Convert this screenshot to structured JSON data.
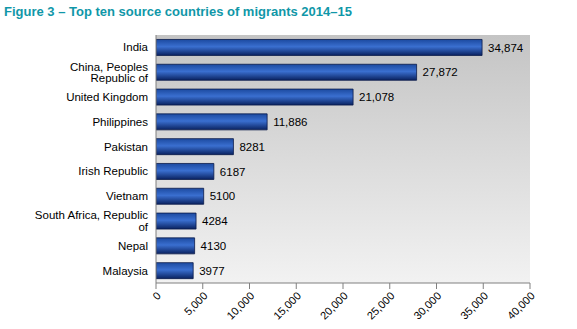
{
  "chart_data": {
    "type": "bar",
    "orientation": "horizontal",
    "title": "Figure 3 – Top ten source countries of migrants 2014–15",
    "categories": [
      "India",
      "China, Peoples Republic of",
      "United Kingdom",
      "Philippines",
      "Pakistan",
      "Irish Republic",
      "Vietnam",
      "South Africa, Republic of",
      "Nepal",
      "Malaysia"
    ],
    "values": [
      34874,
      27872,
      21078,
      11886,
      8281,
      6187,
      5100,
      4284,
      4130,
      3977
    ],
    "value_labels": [
      "34,874",
      "27,872",
      "21,078",
      "11,886",
      "8281",
      "6187",
      "5100",
      "4284",
      "4130",
      "3977"
    ],
    "data_labels": true,
    "color": "#1c4aa0",
    "xlim": [
      0,
      40000
    ],
    "xticks": [
      0,
      {
        "value": 5000,
        "label": "5,000"
      },
      {
        "value": 10000,
        "label": "10,000"
      },
      {
        "value": 15000,
        "label": "15,000"
      },
      {
        "value": 20000,
        "label": "20,000"
      },
      {
        "value": 25000,
        "label": "25,000"
      },
      {
        "value": 30000,
        "label": "30,000"
      },
      {
        "value": 35000,
        "label": "35,000"
      },
      {
        "value": 40000,
        "label": "40,000"
      }
    ],
    "grid": false
  }
}
